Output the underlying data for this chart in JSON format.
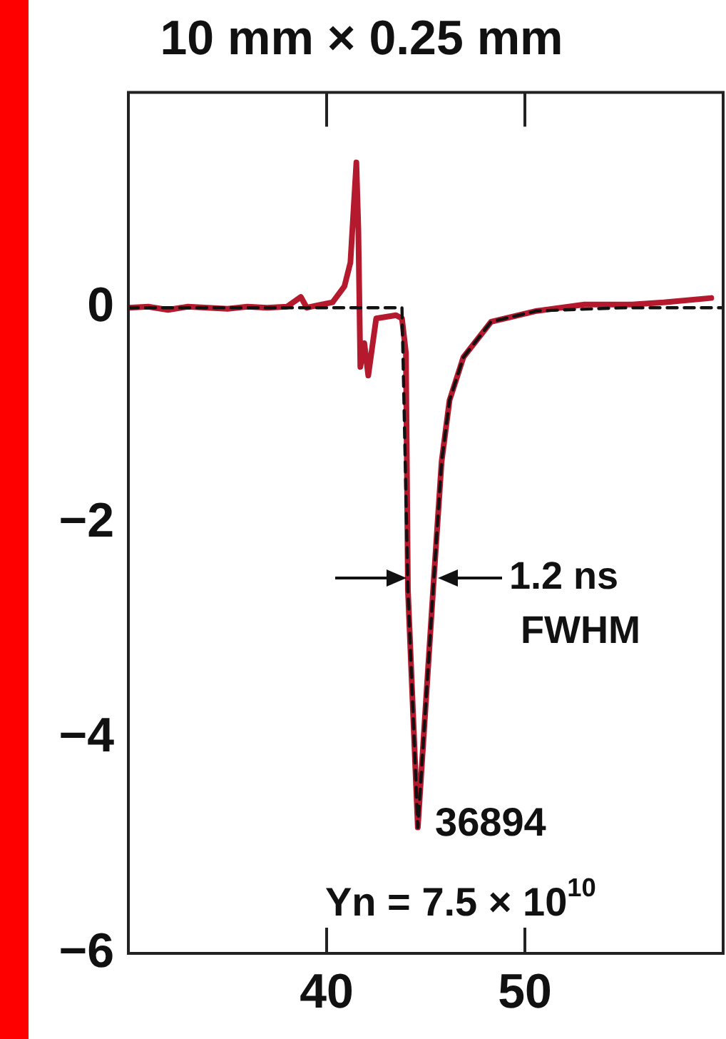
{
  "chart_data": {
    "type": "line",
    "title": "10 mm × 0.25 mm",
    "xlim": [
      30,
      60
    ],
    "xticks": [
      40,
      50
    ],
    "ylim": [
      -6,
      2
    ],
    "yticks": [
      {
        "value": 0,
        "label": "0"
      },
      {
        "value": -2,
        "label": "−2"
      },
      {
        "value": -4,
        "label": "−4"
      },
      {
        "value": -6,
        "label": "−6"
      }
    ],
    "grid": false,
    "legend": false,
    "marker": "none",
    "series": [
      {
        "color": "#b5192e",
        "line_style": "solid",
        "x": [
          30,
          31,
          32,
          33,
          34,
          35,
          36,
          37,
          38,
          38.7,
          39,
          39.5,
          40.3,
          40.9,
          41.2,
          41.5,
          41.6,
          41.7,
          41.9,
          42.1,
          42.5,
          43.5,
          43.8,
          44.0,
          44.1,
          44.6,
          45.4,
          45.8,
          46.2,
          46.9,
          48.3,
          50.6,
          53,
          55.4,
          57,
          59.4
        ],
        "values": [
          0,
          0.01,
          -0.02,
          0.01,
          0,
          -0.01,
          0.01,
          0,
          0.01,
          0.1,
          0,
          0.02,
          0.05,
          0.2,
          0.42,
          1.35,
          0.73,
          -0.55,
          -0.33,
          -0.63,
          -0.1,
          -0.07,
          -0.1,
          -0.42,
          -2.62,
          -4.83,
          -2.54,
          -1.43,
          -0.86,
          -0.46,
          -0.13,
          -0.03,
          0.03,
          0.03,
          0.05,
          0.09
        ]
      },
      {
        "color": "#111111",
        "line_style": "dashed",
        "x": [
          30,
          43.8,
          44.1,
          44.6,
          45.4,
          45.8,
          46.2,
          46.9,
          48.3,
          50.6,
          55,
          60
        ],
        "values": [
          0,
          0,
          -2.62,
          -4.83,
          -2.54,
          -1.43,
          -0.86,
          -0.46,
          -0.13,
          -0.03,
          0,
          0
        ]
      }
    ],
    "annotations": [
      "1.2 ns\nFWHM",
      "36894",
      "Yn = 7.5 × 10$^{10}$"
    ]
  }
}
